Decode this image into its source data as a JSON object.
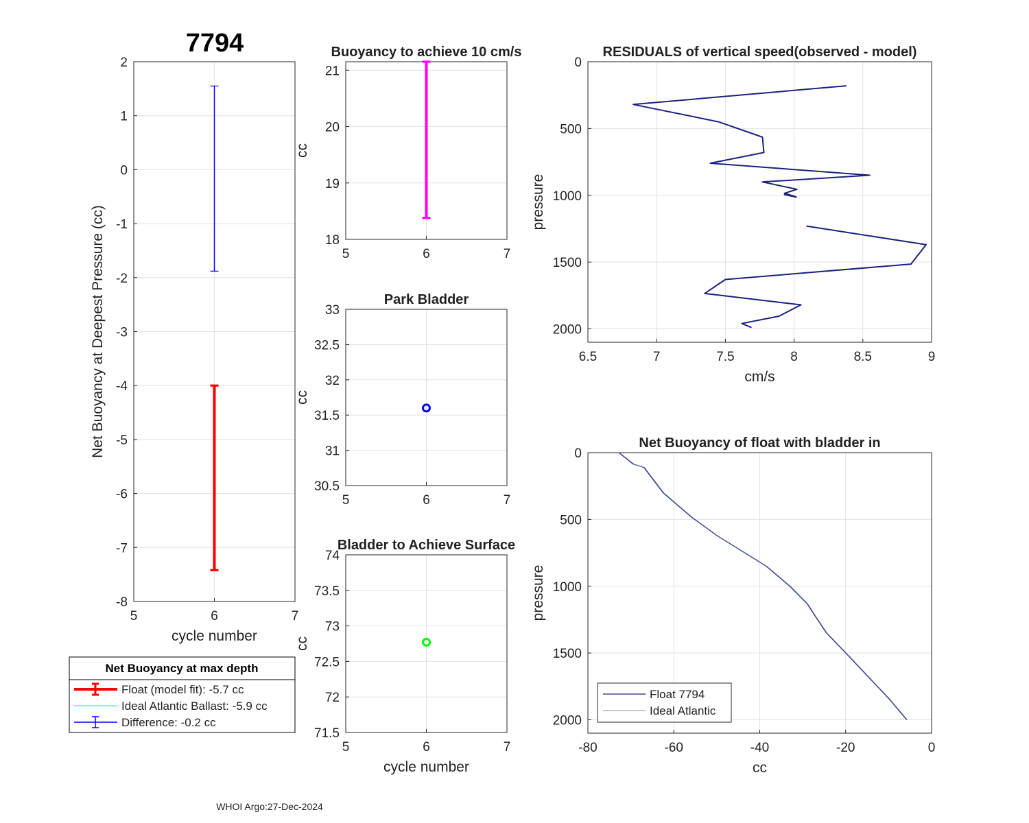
{
  "figure": {
    "title": "7794",
    "footer": "WHOI Argo:27-Dec-2024",
    "colors": {
      "red": "#ff0000",
      "blue": "#0000ff",
      "magenta": "#ff00ff",
      "green": "#00ff00",
      "navy": "#1a237e",
      "cyan": "#00e5e5"
    }
  },
  "legend_main": {
    "title": "Net Buoyancy at max depth",
    "entries": [
      {
        "label": "Float (model fit):  -5.7 cc",
        "color": "#ff0000",
        "marker": "errorbar"
      },
      {
        "label": "Ideal Atlantic Ballast:  -5.9 cc",
        "color": "#00e5e5",
        "marker": "line"
      },
      {
        "label": "Difference:  -0.2 cc",
        "color": "#0000ff",
        "marker": "errorbar"
      }
    ]
  },
  "chart_data": [
    {
      "id": "net-buoyancy",
      "type": "errorbar",
      "title": "7794",
      "xlabel": "cycle number",
      "ylabel": "Net Buoyancy at Deepest Pressure (cc)",
      "xlim": [
        5,
        7
      ],
      "ylim": [
        -8,
        2
      ],
      "xticks": [
        5,
        6,
        7
      ],
      "yticks": [
        2,
        1,
        0,
        -1,
        -2,
        -3,
        -4,
        -5,
        -6,
        -7,
        -8
      ],
      "series": [
        {
          "name": "Float (model fit)",
          "x": 6,
          "low": -7.42,
          "high": -4.0,
          "color": "#ff0000",
          "width": 4
        },
        {
          "name": "Difference",
          "x": 6,
          "low": -1.88,
          "high": 1.55,
          "color": "#0000ff",
          "width": 1.5
        }
      ]
    },
    {
      "id": "buoyancy-10cms",
      "type": "errorbar",
      "title": "Buoyancy to achieve 10 cm/s",
      "xlabel": "",
      "ylabel": "cc",
      "xlim": [
        5,
        7
      ],
      "ylim": [
        18,
        21.15
      ],
      "xticks": [
        5,
        6,
        7
      ],
      "yticks": [
        21,
        20,
        19,
        18
      ],
      "series": [
        {
          "name": "Buoyancy",
          "x": 6,
          "low": 18.38,
          "high": 21.15,
          "color": "#ff00ff",
          "width": 4
        }
      ]
    },
    {
      "id": "park-bladder",
      "type": "scatter",
      "title": "Park Bladder",
      "xlabel": "",
      "ylabel": "cc",
      "xlim": [
        5,
        7
      ],
      "ylim": [
        30.5,
        33
      ],
      "xticks": [
        5,
        6,
        7
      ],
      "yticks": [
        33,
        32.5,
        32,
        31.5,
        31,
        30.5
      ],
      "points": [
        {
          "x": 6,
          "y": 31.6,
          "color": "#0000ff"
        }
      ]
    },
    {
      "id": "bladder-surface",
      "type": "scatter",
      "title": "Bladder to Achieve Surface",
      "xlabel": "cycle number",
      "ylabel": "cc",
      "xlim": [
        5,
        7
      ],
      "ylim": [
        71.5,
        74
      ],
      "xticks": [
        5,
        6,
        7
      ],
      "yticks": [
        74,
        73.5,
        73,
        72.5,
        72,
        71.5
      ],
      "points": [
        {
          "x": 6,
          "y": 72.77,
          "color": "#00ff00"
        }
      ]
    },
    {
      "id": "residuals",
      "type": "line",
      "title": "RESIDUALS of vertical speed(observed - model)",
      "xlabel": "cm/s",
      "ylabel": "pressure",
      "xlim": [
        6.5,
        9
      ],
      "ylim": [
        0,
        2100
      ],
      "yreversed": true,
      "xticks": [
        6.5,
        7,
        7.5,
        8,
        8.5,
        9
      ],
      "yticks": [
        0,
        500,
        1000,
        1500,
        2000
      ],
      "segments": [
        [
          [
            8.38,
            180
          ],
          [
            6.83,
            320
          ],
          [
            7.45,
            450
          ],
          [
            7.77,
            565
          ],
          [
            7.78,
            680
          ],
          [
            7.39,
            760
          ],
          [
            8.55,
            850
          ],
          [
            7.77,
            900
          ],
          [
            8.02,
            955
          ],
          [
            7.93,
            985
          ],
          [
            8.01,
            1010
          ],
          [
            7.93,
            995
          ],
          [
            8.02,
            1015
          ]
        ],
        [
          [
            8.09,
            1230
          ],
          [
            8.96,
            1370
          ],
          [
            8.85,
            1515
          ],
          [
            7.5,
            1630
          ],
          [
            7.35,
            1735
          ],
          [
            8.05,
            1820
          ],
          [
            7.89,
            1905
          ],
          [
            7.62,
            1960
          ],
          [
            7.69,
            1990
          ]
        ]
      ],
      "color": "#1a237e"
    },
    {
      "id": "net-buoyancy-bladder-in",
      "type": "line",
      "title": "Net Buoyancy of float with bladder in",
      "xlabel": "cc",
      "ylabel": "pressure",
      "xlim": [
        -80,
        0
      ],
      "ylim": [
        0,
        2100
      ],
      "yreversed": true,
      "xticks": [
        -80,
        -60,
        -40,
        -20,
        0
      ],
      "yticks": [
        0,
        500,
        1000,
        1500,
        2000
      ],
      "legend": {
        "location": "bottom-left",
        "entries": [
          "Float 7794",
          "Ideal Atlantic"
        ]
      },
      "series": [
        {
          "name": "Float 7794",
          "color": "#1a237e",
          "points": [
            [
              -72.8,
              0
            ],
            [
              -69.5,
              85
            ],
            [
              -67,
              110
            ],
            [
              -62.5,
              300
            ],
            [
              -56,
              480
            ],
            [
              -50,
              620
            ],
            [
              -43,
              760
            ],
            [
              -38.5,
              850
            ],
            [
              -33,
              1000
            ],
            [
              -29,
              1130
            ],
            [
              -27.2,
              1220
            ],
            [
              -24.5,
              1350
            ],
            [
              -20,
              1500
            ],
            [
              -15,
              1670
            ],
            [
              -10,
              1840
            ],
            [
              -5.8,
              2000
            ]
          ]
        },
        {
          "name": "Ideal Atlantic",
          "color": "#9aa0c8",
          "points": [
            [
              -72.6,
              0
            ],
            [
              -69.2,
              85
            ],
            [
              -66.8,
              110
            ],
            [
              -62.3,
              300
            ],
            [
              -55.8,
              480
            ],
            [
              -49.8,
              620
            ],
            [
              -42.8,
              760
            ],
            [
              -38.3,
              850
            ],
            [
              -32.8,
              1000
            ],
            [
              -28.8,
              1130
            ],
            [
              -27,
              1220
            ],
            [
              -24.3,
              1350
            ],
            [
              -19.8,
              1500
            ],
            [
              -14.8,
              1670
            ],
            [
              -9.8,
              1840
            ],
            [
              -5.6,
              2000
            ]
          ]
        }
      ]
    }
  ]
}
